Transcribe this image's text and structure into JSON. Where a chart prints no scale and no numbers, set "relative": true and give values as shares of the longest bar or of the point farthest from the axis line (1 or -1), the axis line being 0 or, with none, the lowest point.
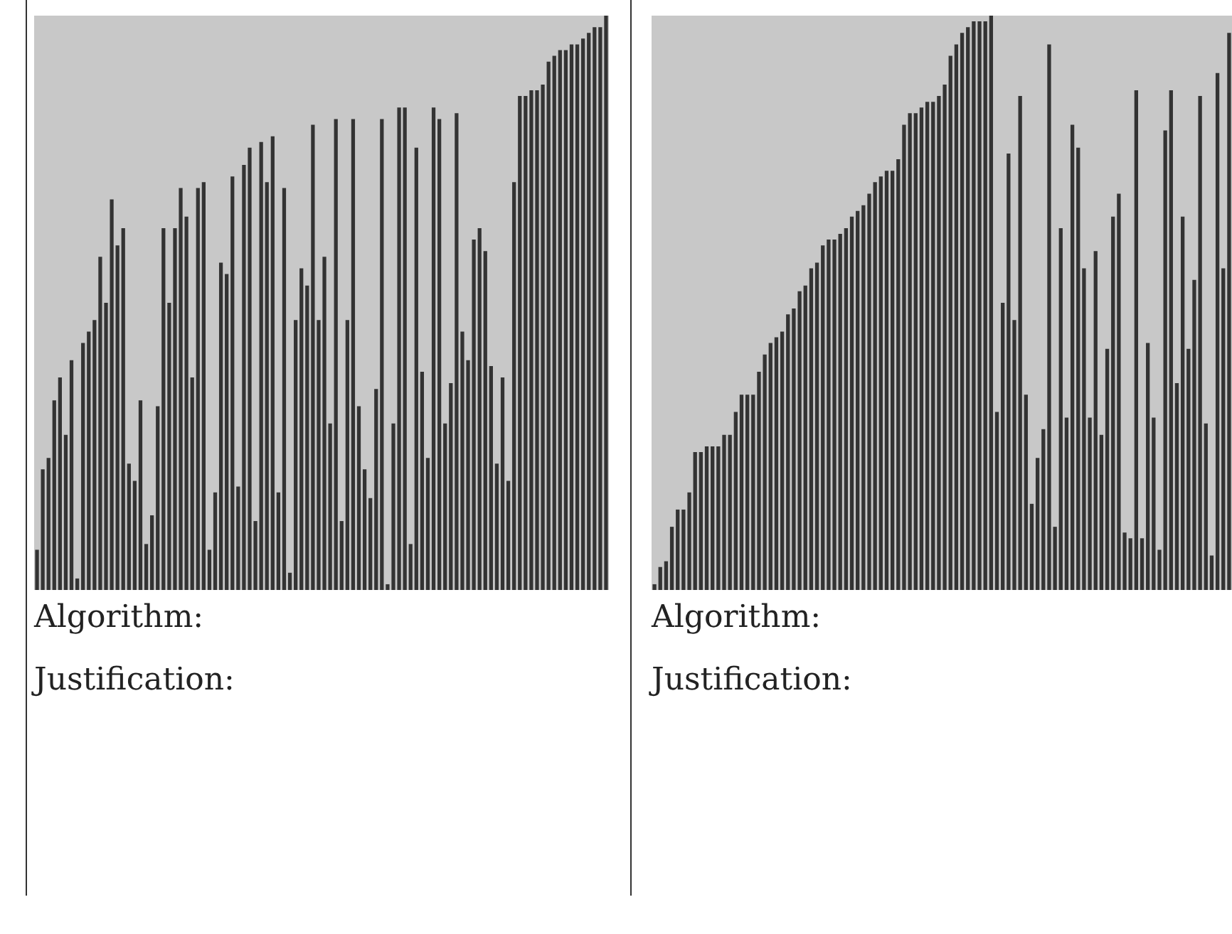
{
  "chart_data": [
    {
      "type": "bar",
      "relative": true,
      "color": "#333333",
      "tick_labels": false,
      "annotations": [
        "Algorithm:",
        "Justification:"
      ],
      "categories": [
        null,
        null,
        null,
        null,
        null,
        null,
        null,
        null,
        null,
        null,
        null,
        null,
        null,
        null,
        null,
        null,
        null,
        null,
        null,
        null,
        null,
        null,
        null,
        null,
        null,
        null,
        null,
        null,
        null,
        null,
        null,
        null,
        null,
        null,
        null,
        null,
        null,
        null,
        null,
        null,
        null,
        null,
        null,
        null,
        null,
        null,
        null,
        null,
        null,
        null,
        null,
        null,
        null,
        null,
        null,
        null,
        null,
        null,
        null,
        null,
        null,
        null,
        null,
        null,
        null,
        null,
        null,
        null,
        null,
        null,
        null,
        null,
        null,
        null,
        null,
        null,
        null,
        null,
        null,
        null,
        null,
        null,
        null,
        null,
        null,
        null,
        null,
        null,
        null,
        null,
        null,
        null,
        null,
        null,
        null,
        null,
        null,
        null,
        null,
        null
      ],
      "values": [
        0.07,
        0.21,
        0.23,
        0.33,
        0.37,
        0.27,
        0.4,
        0.02,
        0.43,
        0.45,
        0.47,
        0.58,
        0.5,
        0.68,
        0.6,
        0.63,
        0.22,
        0.19,
        0.33,
        0.08,
        0.13,
        0.32,
        0.63,
        0.5,
        0.63,
        0.7,
        0.65,
        0.37,
        0.7,
        0.71,
        0.07,
        0.17,
        0.57,
        0.55,
        0.72,
        0.18,
        0.74,
        0.77,
        0.12,
        0.78,
        0.71,
        0.79,
        0.17,
        0.7,
        0.03,
        0.47,
        0.56,
        0.53,
        0.81,
        0.47,
        0.58,
        0.29,
        0.82,
        0.12,
        0.47,
        0.82,
        0.32,
        0.21,
        0.16,
        0.35,
        0.82,
        0.01,
        0.29,
        0.84,
        0.84,
        0.08,
        0.77,
        0.38,
        0.23,
        0.84,
        0.82,
        0.29,
        0.36,
        0.83,
        0.45,
        0.4,
        0.61,
        0.63,
        0.59,
        0.39,
        0.22,
        0.37,
        0.19,
        0.71,
        0.86,
        0.86,
        0.87,
        0.87,
        0.88,
        0.92,
        0.93,
        0.94,
        0.94,
        0.95,
        0.95,
        0.96,
        0.97,
        0.98,
        0.98,
        1
      ]
    },
    {
      "type": "bar",
      "relative": true,
      "color": "#333333",
      "tick_labels": false,
      "annotations": [
        "Algorithm:",
        "Justification:"
      ],
      "categories": [
        null,
        null,
        null,
        null,
        null,
        null,
        null,
        null,
        null,
        null,
        null,
        null,
        null,
        null,
        null,
        null,
        null,
        null,
        null,
        null,
        null,
        null,
        null,
        null,
        null,
        null,
        null,
        null,
        null,
        null,
        null,
        null,
        null,
        null,
        null,
        null,
        null,
        null,
        null,
        null,
        null,
        null,
        null,
        null,
        null,
        null,
        null,
        null,
        null,
        null,
        null,
        null,
        null,
        null,
        null,
        null,
        null,
        null,
        null,
        null,
        null,
        null,
        null,
        null,
        null,
        null,
        null,
        null,
        null,
        null,
        null,
        null,
        null,
        null,
        null,
        null,
        null,
        null,
        null,
        null,
        null,
        null,
        null,
        null,
        null,
        null,
        null,
        null,
        null,
        null,
        null,
        null,
        null,
        null,
        null,
        null,
        null,
        null,
        null,
        null
      ],
      "values": [
        0.01,
        0.04,
        0.05,
        0.11,
        0.14,
        0.14,
        0.17,
        0.24,
        0.24,
        0.25,
        0.25,
        0.25,
        0.27,
        0.27,
        0.31,
        0.34,
        0.34,
        0.34,
        0.38,
        0.41,
        0.43,
        0.44,
        0.45,
        0.48,
        0.49,
        0.52,
        0.53,
        0.56,
        0.57,
        0.6,
        0.61,
        0.61,
        0.62,
        0.63,
        0.65,
        0.66,
        0.67,
        0.69,
        0.71,
        0.72,
        0.73,
        0.73,
        0.75,
        0.81,
        0.83,
        0.83,
        0.84,
        0.85,
        0.85,
        0.86,
        0.88,
        0.93,
        0.95,
        0.97,
        0.98,
        0.99,
        0.99,
        0.99,
        1,
        0.31,
        0.5,
        0.76,
        0.47,
        0.86,
        0.34,
        0.15,
        0.23,
        0.28,
        0.95,
        0.11,
        0.63,
        0.3,
        0.81,
        0.77,
        0.56,
        0.3,
        0.59,
        0.27,
        0.42,
        0.65,
        0.69,
        0.1,
        0.09,
        0.87,
        0.09,
        0.43,
        0.3,
        0.07,
        0.8,
        0.87,
        0.36,
        0.65,
        0.42,
        0.54,
        0.86,
        0.29,
        0.06,
        0.9,
        0.56,
        0.97
      ]
    }
  ]
}
